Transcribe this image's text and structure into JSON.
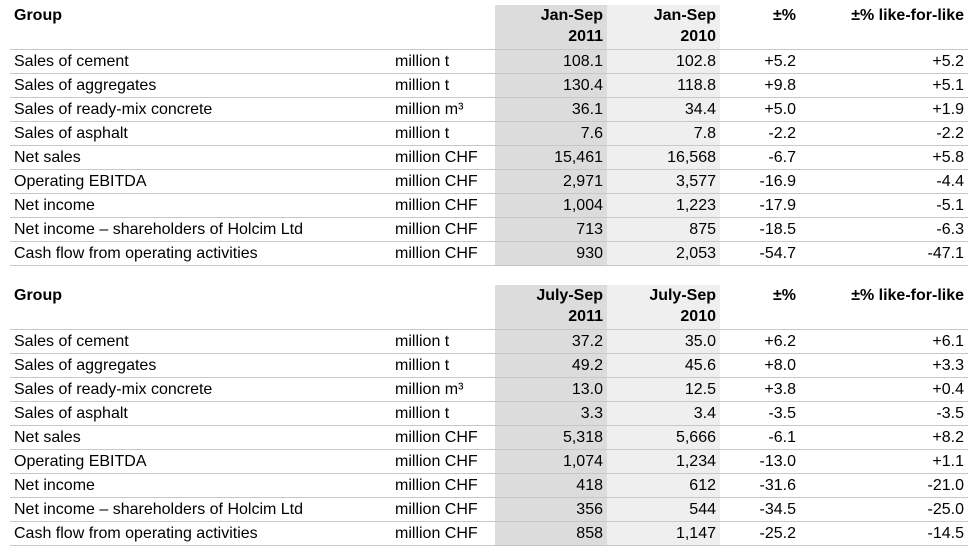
{
  "tables": [
    {
      "header": {
        "group": "Group",
        "col1_line1": "Jan-Sep",
        "col1_line2": "2011",
        "col2_line1": "Jan-Sep",
        "col2_line2": "2010",
        "pct": "±%",
        "lfl": "±% like-for-like"
      },
      "rows": [
        {
          "label": "Sales of cement",
          "unit": "million t",
          "v1": "108.1",
          "v2": "102.8",
          "pct": "+5.2",
          "lfl": "+5.2"
        },
        {
          "label": "Sales of aggregates",
          "unit": "million t",
          "v1": "130.4",
          "v2": "118.8",
          "pct": "+9.8",
          "lfl": "+5.1"
        },
        {
          "label": "Sales of ready-mix concrete",
          "unit": "million m³",
          "v1": "36.1",
          "v2": "34.4",
          "pct": "+5.0",
          "lfl": "+1.9"
        },
        {
          "label": "Sales of asphalt",
          "unit": "million t",
          "v1": "7.6",
          "v2": "7.8",
          "pct": "-2.2",
          "lfl": "-2.2"
        },
        {
          "label": "Net sales",
          "unit": "million CHF",
          "v1": "15,461",
          "v2": "16,568",
          "pct": "-6.7",
          "lfl": "+5.8"
        },
        {
          "label": "Operating EBITDA",
          "unit": "million CHF",
          "v1": "2,971",
          "v2": "3,577",
          "pct": "-16.9",
          "lfl": "-4.4"
        },
        {
          "label": "Net income",
          "unit": "million CHF",
          "v1": "1,004",
          "v2": "1,223",
          "pct": "-17.9",
          "lfl": "-5.1"
        },
        {
          "label": "Net income – shareholders of Holcim Ltd",
          "unit": "million CHF",
          "v1": "713",
          "v2": "875",
          "pct": "-18.5",
          "lfl": "-6.3"
        },
        {
          "label": "Cash flow from operating activities",
          "unit": "million CHF",
          "v1": "930",
          "v2": "2,053",
          "pct": "-54.7",
          "lfl": "-47.1"
        }
      ]
    },
    {
      "header": {
        "group": "Group",
        "col1_line1": "July-Sep",
        "col1_line2": "2011",
        "col2_line1": "July-Sep",
        "col2_line2": "2010",
        "pct": "±%",
        "lfl": "±% like-for-like"
      },
      "rows": [
        {
          "label": "Sales of cement",
          "unit": "million t",
          "v1": "37.2",
          "v2": "35.0",
          "pct": "+6.2",
          "lfl": "+6.1"
        },
        {
          "label": "Sales of aggregates",
          "unit": "million t",
          "v1": "49.2",
          "v2": "45.6",
          "pct": "+8.0",
          "lfl": "+3.3"
        },
        {
          "label": "Sales of ready-mix concrete",
          "unit": "million m³",
          "v1": "13.0",
          "v2": "12.5",
          "pct": "+3.8",
          "lfl": "+0.4"
        },
        {
          "label": "Sales of asphalt",
          "unit": "million t",
          "v1": "3.3",
          "v2": "3.4",
          "pct": "-3.5",
          "lfl": "-3.5"
        },
        {
          "label": "Net sales",
          "unit": "million CHF",
          "v1": "5,318",
          "v2": "5,666",
          "pct": "-6.1",
          "lfl": "+8.2"
        },
        {
          "label": "Operating EBITDA",
          "unit": "million CHF",
          "v1": "1,074",
          "v2": "1,234",
          "pct": "-13.0",
          "lfl": "+1.1"
        },
        {
          "label": "Net income",
          "unit": "million CHF",
          "v1": "418",
          "v2": "612",
          "pct": "-31.6",
          "lfl": "-21.0"
        },
        {
          "label": "Net income – shareholders of Holcim Ltd",
          "unit": "million CHF",
          "v1": "356",
          "v2": "544",
          "pct": "-34.5",
          "lfl": "-25.0"
        },
        {
          "label": "Cash flow from operating activities",
          "unit": "million CHF",
          "v1": "858",
          "v2": "1,147",
          "pct": "-25.2",
          "lfl": "-14.5"
        }
      ]
    }
  ]
}
